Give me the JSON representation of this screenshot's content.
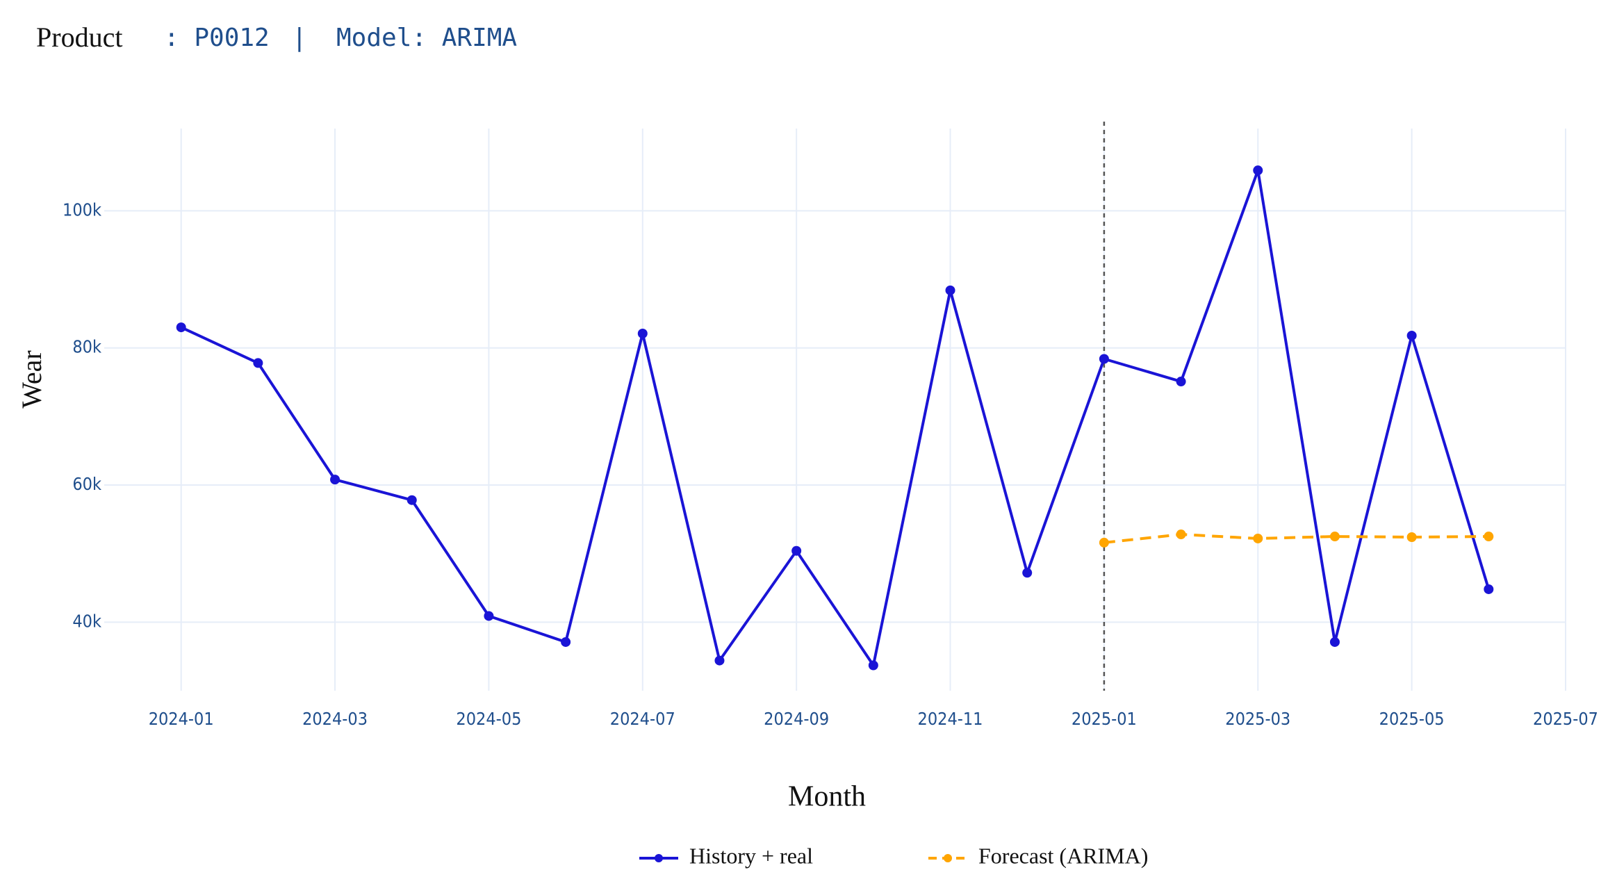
{
  "chart_data": {
    "type": "line",
    "title": {
      "label": "Product",
      "product": ": P0012",
      "separator": "|",
      "model": "Model: ARIMA"
    },
    "x_label": "Month",
    "y_label": "Wear",
    "x": [
      "2024-01",
      "2024-02",
      "2024-03",
      "2024-04",
      "2024-05",
      "2024-06",
      "2024-07",
      "2024-08",
      "2024-09",
      "2024-10",
      "2024-11",
      "2024-12",
      "2025-01",
      "2025-02",
      "2025-03",
      "2025-04",
      "2025-05",
      "2025-06"
    ],
    "series": [
      {
        "name": "History + real",
        "color": "#1a14d6",
        "dash": false,
        "values": [
          83000,
          77800,
          60800,
          57800,
          40900,
          37100,
          82100,
          34400,
          50400,
          33700,
          88400,
          47200,
          78400,
          75100,
          105900,
          37100,
          81800,
          44800
        ]
      },
      {
        "name": "Forecast (ARIMA)",
        "color": "#ffa500",
        "dash": true,
        "values": [
          null,
          null,
          null,
          null,
          null,
          null,
          null,
          null,
          null,
          null,
          null,
          null,
          51600,
          52800,
          52200,
          52500,
          52400,
          52500
        ]
      }
    ],
    "vline_x": "2025-01",
    "xlim": [
      "2023-12",
      "2025-07"
    ],
    "xticks": [
      "2024-01",
      "2024-03",
      "2024-05",
      "2024-07",
      "2024-09",
      "2024-11",
      "2025-01",
      "2025-03",
      "2025-05",
      "2025-07"
    ],
    "ylim": [
      30000,
      112000
    ],
    "yticks": [
      {
        "value": 40000,
        "label": "40k"
      },
      {
        "value": 60000,
        "label": "60k"
      },
      {
        "value": 80000,
        "label": "80k"
      },
      {
        "value": 100000,
        "label": "100k"
      }
    ],
    "grid": true,
    "legend": "bottom"
  }
}
